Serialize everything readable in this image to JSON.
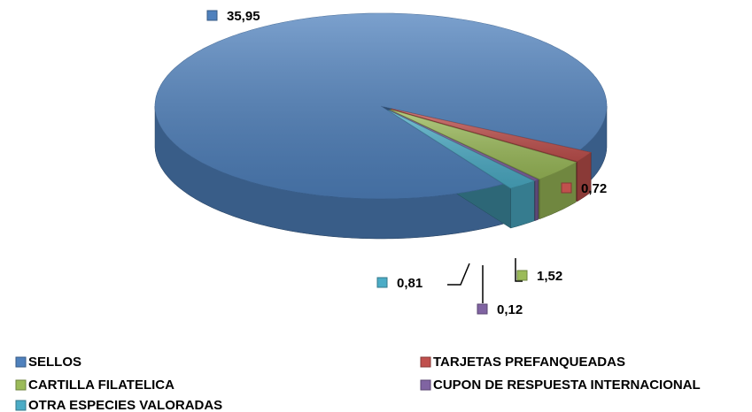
{
  "chart_data": {
    "type": "pie",
    "categories": [
      "SELLOS",
      "TARJETAS PREFANQUEADAS",
      "CARTILLA FILATELICA",
      "CUPON DE RESPUESTA INTERNACIONAL",
      "OTRA ESPECIES VALORADAS"
    ],
    "values": [
      35.95,
      0.72,
      1.52,
      0.12,
      0.81
    ],
    "value_labels": [
      "35,95",
      "0,72",
      "1,52",
      "0,12",
      "0,81"
    ],
    "colors": [
      "#4f81bd",
      "#c0504d",
      "#9bbb59",
      "#8064a2",
      "#4bacc6"
    ],
    "legend": "bottom"
  }
}
